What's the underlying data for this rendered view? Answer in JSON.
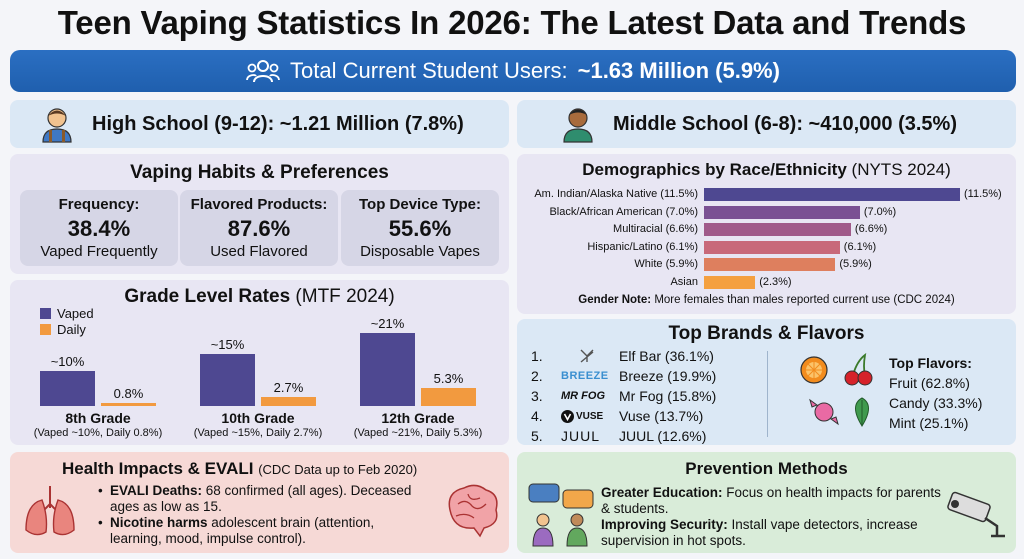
{
  "title": "Teen Vaping Statistics In 2026: The Latest Data and Trends",
  "banner": {
    "label": "Total Current Student Users:",
    "value": "~1.63 Million (5.9%)"
  },
  "high_school": {
    "label": "High School (9-12): ~1.21 Million (7.8%)"
  },
  "middle_school": {
    "label": "Middle School (6-8): ~410,000 (3.5%)"
  },
  "habits": {
    "title": "Vaping Habits & Preferences",
    "stats": [
      {
        "heading": "Frequency:",
        "value": "38.4%",
        "sub": "Vaped Frequently"
      },
      {
        "heading": "Flavored Products:",
        "value": "87.6%",
        "sub": "Used Flavored"
      },
      {
        "heading": "Top Device Type:",
        "value": "55.6%",
        "sub": "Disposable Vapes"
      }
    ]
  },
  "chart_data": [
    {
      "type": "bar",
      "title": "Grade Level Rates",
      "subtitle": "(MTF 2024)",
      "categories": [
        "8th Grade",
        "10th Grade",
        "12th Grade"
      ],
      "category_notes": [
        "(Vaped ~10%, Daily 0.8%)",
        "(Vaped ~15%, Daily 2.7%)",
        "(Vaped ~21%, Daily 5.3%)"
      ],
      "series": [
        {
          "name": "Vaped",
          "values": [
            10,
            15,
            21
          ],
          "labels": [
            "~10%",
            "~15%",
            "~21%"
          ],
          "color": "#4e4891"
        },
        {
          "name": "Daily",
          "values": [
            0.8,
            2.7,
            5.3
          ],
          "labels": [
            "0.8%",
            "2.7%",
            "5.3%"
          ],
          "color": "#f29a3f"
        }
      ],
      "ylim": [
        0,
        22
      ]
    },
    {
      "type": "bar",
      "orientation": "horizontal",
      "title": "Demographics by Race/Ethnicity",
      "subtitle": "(NYTS 2024)",
      "categories": [
        "Am. Indian/Alaska Native (11.5%)",
        "Black/African American (7.0%)",
        "Multiracial (6.6%)",
        "Hispanic/Latino (6.1%)",
        "White (5.9%)",
        "Asian"
      ],
      "values": [
        11.5,
        7.0,
        6.6,
        6.1,
        5.9,
        2.3
      ],
      "value_labels": [
        "(11.5%)",
        "(7.0%)",
        "(6.6%)",
        "(6.1%)",
        "(5.9%)",
        "(2.3%)"
      ],
      "colors": [
        "#4e4891",
        "#7a5193",
        "#a05a8a",
        "#c8697a",
        "#de7f5e",
        "#f4a040"
      ],
      "xlim": [
        0,
        11.5
      ]
    }
  ],
  "demo_note": {
    "bold": "Gender Note:",
    "text": "More females than males reported current use (CDC 2024)"
  },
  "brands": {
    "title": "Top Brands & Flavors",
    "list": [
      {
        "num": "1.",
        "logo": "",
        "label": "Elf Bar (36.1%)"
      },
      {
        "num": "2.",
        "logo": "BREEZE",
        "label": "Breeze (19.9%)"
      },
      {
        "num": "3.",
        "logo": "MR FOG",
        "label": "Mr Fog (15.8%)"
      },
      {
        "num": "4.",
        "logo": "VUSE",
        "label": "Vuse (13.7%)"
      },
      {
        "num": "5.",
        "logo": "JUUL",
        "label": "JUUL (12.6%)"
      }
    ],
    "flavors_title": "Top Flavors:",
    "flavors": [
      "Fruit (62.8%)",
      "Candy (33.3%)",
      "Mint (25.1%)"
    ]
  },
  "health": {
    "title": "Health Impacts & EVALI",
    "subtitle": "(CDC Data up to Feb 2020)",
    "items": [
      {
        "bold": "EVALI Deaths:",
        "text": "68 confirmed (all ages). Deceased ages as low as 15."
      },
      {
        "bold": "Nicotine harms",
        "text": "adolescent brain (attention, learning, mood, impulse control)."
      }
    ]
  },
  "prevention": {
    "title": "Prevention Methods",
    "items": [
      {
        "bold": "Greater Education:",
        "text": "Focus on health impacts for parents & students."
      },
      {
        "bold": "Improving Security:",
        "text": "Install vape detectors, increase supervision in hot spots."
      }
    ]
  },
  "icons": [
    "users-icon",
    "student-icon",
    "lungs-icon",
    "brain-icon",
    "chat-icon",
    "camera-icon",
    "orange-icon",
    "cherry-icon",
    "candy-icon",
    "mint-icon"
  ]
}
